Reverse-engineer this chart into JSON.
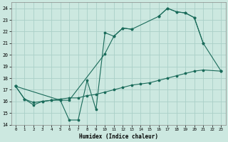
{
  "xlabel": "Humidex (Indice chaleur)",
  "bg_color": "#cce8e0",
  "grid_color": "#aad0c8",
  "line_color": "#1a6b5a",
  "xlim": [
    -0.5,
    23.5
  ],
  "ylim": [
    14,
    24.5
  ],
  "yticks": [
    14,
    15,
    16,
    17,
    18,
    19,
    20,
    21,
    22,
    23,
    24
  ],
  "xticks": [
    0,
    1,
    2,
    3,
    4,
    5,
    6,
    7,
    8,
    9,
    10,
    11,
    12,
    13,
    14,
    15,
    16,
    17,
    18,
    19,
    20,
    21,
    22,
    23
  ],
  "line1_x": [
    0,
    1,
    2,
    3,
    4,
    5,
    6,
    7,
    8,
    9,
    10,
    11,
    12,
    13,
    14,
    15,
    16,
    17,
    18,
    19,
    20,
    21,
    22,
    23
  ],
  "line1_y": [
    17.3,
    16.2,
    15.7,
    16.0,
    16.1,
    16.1,
    14.4,
    14.4,
    17.8,
    15.3,
    21.9,
    21.6,
    22.3,
    22.2,
    null,
    null,
    23.3,
    24.0,
    23.7,
    23.6,
    23.2,
    21.0,
    null,
    18.6
  ],
  "line2_x": [
    0,
    5,
    6,
    10,
    11,
    12,
    13,
    16,
    17,
    18,
    19,
    20,
    21,
    23
  ],
  "line2_y": [
    17.3,
    16.1,
    16.1,
    20.1,
    21.6,
    22.3,
    22.2,
    23.3,
    24.0,
    23.7,
    23.6,
    23.2,
    21.0,
    18.6
  ],
  "line3_x": [
    0,
    1,
    2,
    3,
    4,
    5,
    6,
    7,
    8,
    9,
    10,
    11,
    12,
    13,
    14,
    15,
    16,
    17,
    18,
    19,
    20,
    21,
    23
  ],
  "line3_y": [
    17.3,
    16.2,
    15.9,
    16.0,
    16.1,
    16.2,
    16.3,
    16.3,
    16.5,
    16.6,
    16.8,
    17.0,
    17.2,
    17.4,
    17.5,
    17.6,
    17.8,
    18.0,
    18.2,
    18.4,
    18.6,
    18.7,
    18.6
  ]
}
